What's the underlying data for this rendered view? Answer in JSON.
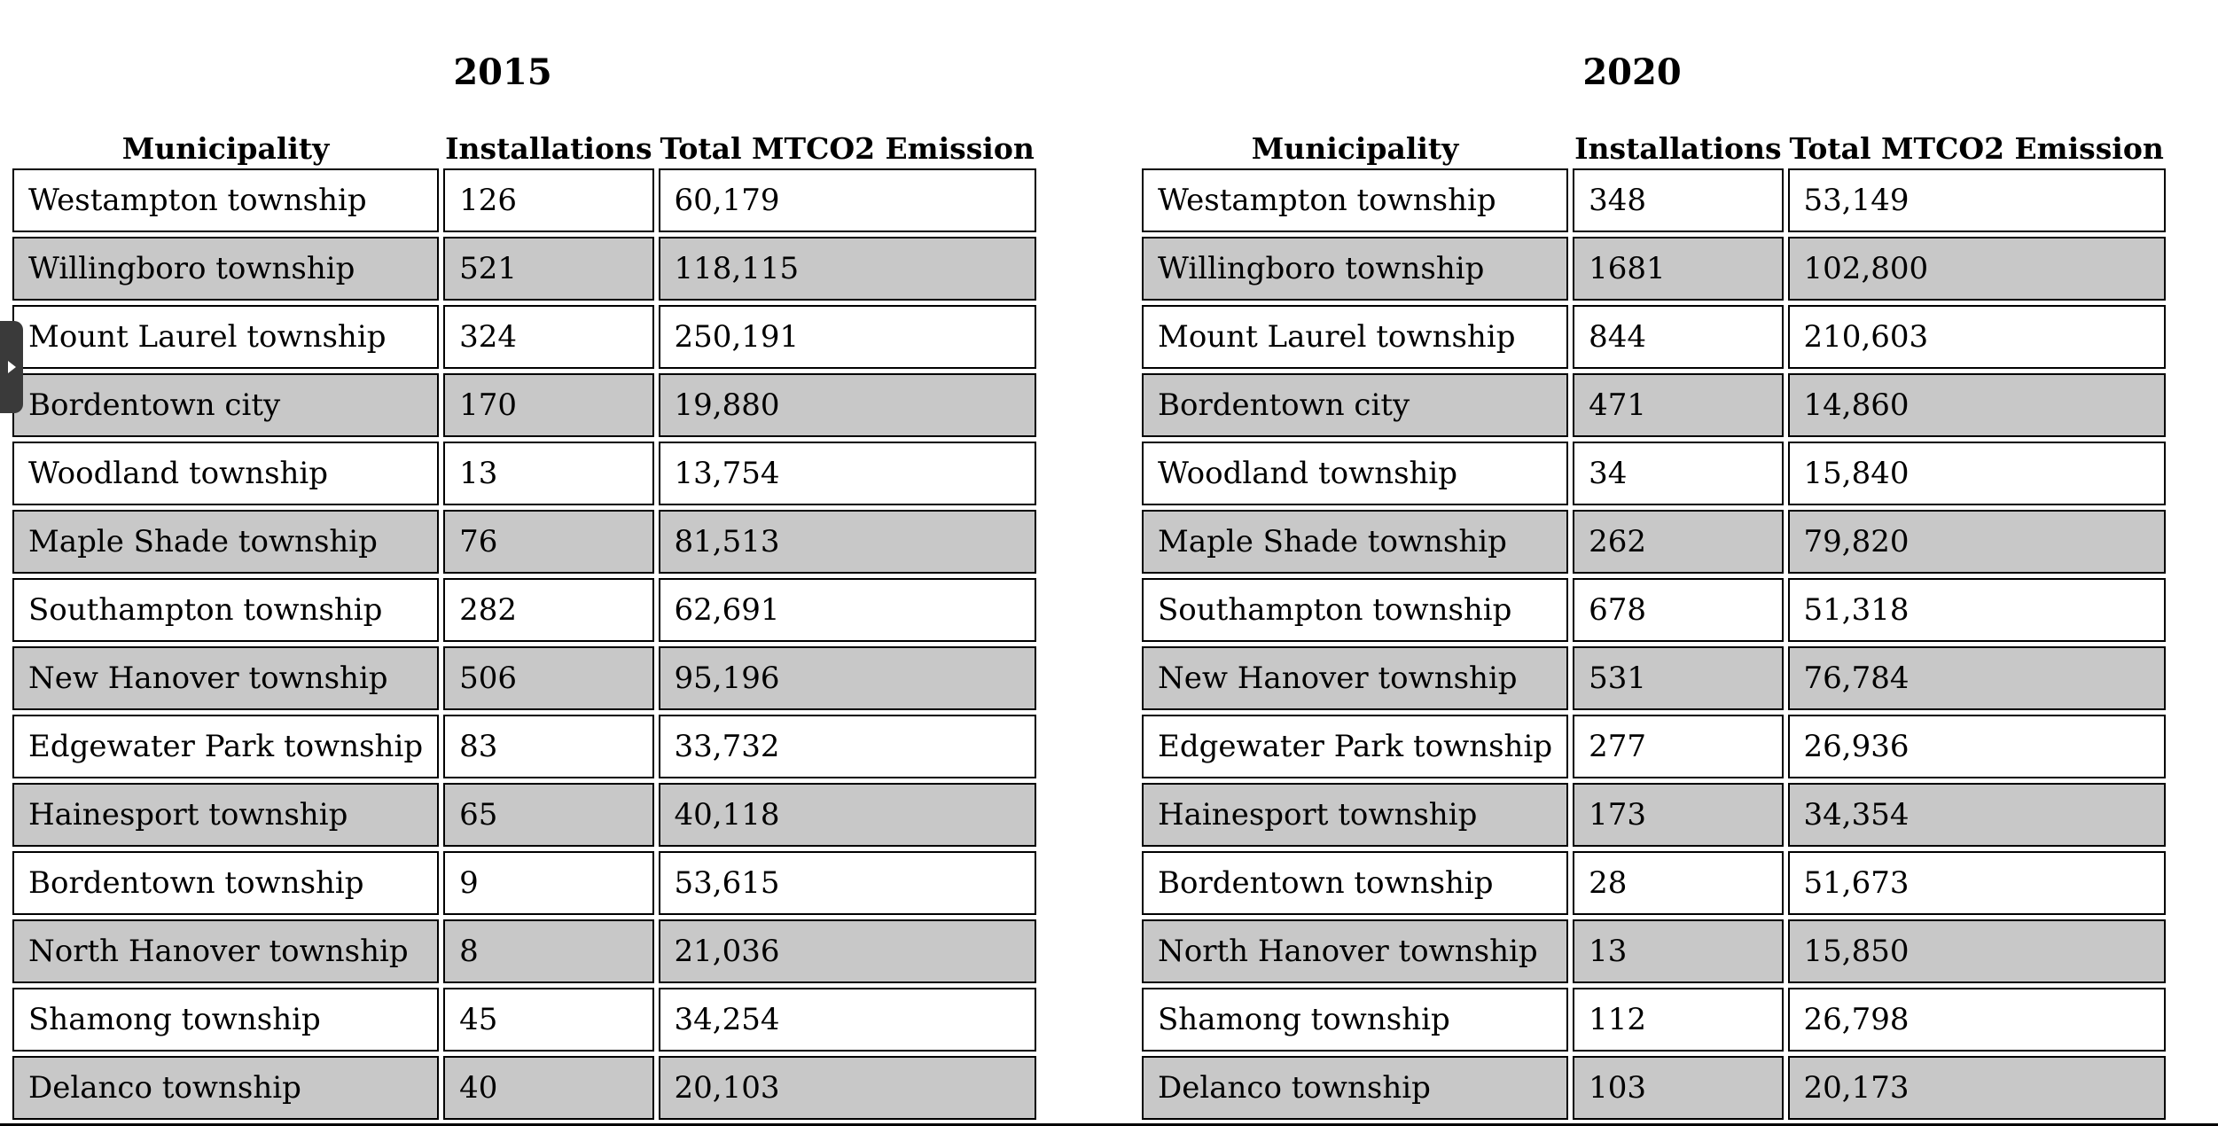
{
  "left_table": {
    "year": "2015",
    "headers": [
      "Municipality",
      "Installations",
      "Total MTCO2 Emission"
    ],
    "rows": [
      [
        "Westampton township",
        "126",
        "60,179"
      ],
      [
        "Willingboro township",
        "521",
        "118,115"
      ],
      [
        "Mount Laurel township",
        "324",
        "250,191"
      ],
      [
        "Bordentown city",
        "170",
        "19,880"
      ],
      [
        "Woodland township",
        "13",
        "13,754"
      ],
      [
        "Maple Shade township",
        "76",
        "81,513"
      ],
      [
        "Southampton township",
        "282",
        "62,691"
      ],
      [
        "New Hanover township",
        "506",
        "95,196"
      ],
      [
        "Edgewater Park township",
        "83",
        "33,732"
      ],
      [
        "Hainesport township",
        "65",
        "40,118"
      ],
      [
        "Bordentown township",
        "9",
        "53,615"
      ],
      [
        "North Hanover township",
        "8",
        "21,036"
      ],
      [
        "Shamong township",
        "45",
        "34,254"
      ],
      [
        "Delanco township",
        "40",
        "20,103"
      ]
    ]
  },
  "right_table": {
    "year": "2020",
    "headers": [
      "Municipality",
      "Installations",
      "Total MTCO2 Emission"
    ],
    "rows": [
      [
        "Westampton township",
        "348",
        "53,149"
      ],
      [
        "Willingboro township",
        "1681",
        "102,800"
      ],
      [
        "Mount Laurel township",
        "844",
        "210,603"
      ],
      [
        "Bordentown city",
        "471",
        "14,860"
      ],
      [
        "Woodland township",
        "34",
        "15,840"
      ],
      [
        "Maple Shade township",
        "262",
        "79,820"
      ],
      [
        "Southampton township",
        "678",
        "51,318"
      ],
      [
        "New Hanover township",
        "531",
        "76,784"
      ],
      [
        "Edgewater Park township",
        "277",
        "26,936"
      ],
      [
        "Hainesport township",
        "173",
        "34,354"
      ],
      [
        "Bordentown township",
        "28",
        "51,673"
      ],
      [
        "North Hanover township",
        "13",
        "15,850"
      ],
      [
        "Shamong township",
        "112",
        "26,798"
      ],
      [
        "Delanco township",
        "103",
        "20,173"
      ]
    ]
  },
  "side_tab": {
    "icon": "play-triangle-icon"
  },
  "colors": {
    "stripe": "#c8c8c8",
    "border": "#000000",
    "background": "#ffffff",
    "tab": "#3a3a3a"
  }
}
